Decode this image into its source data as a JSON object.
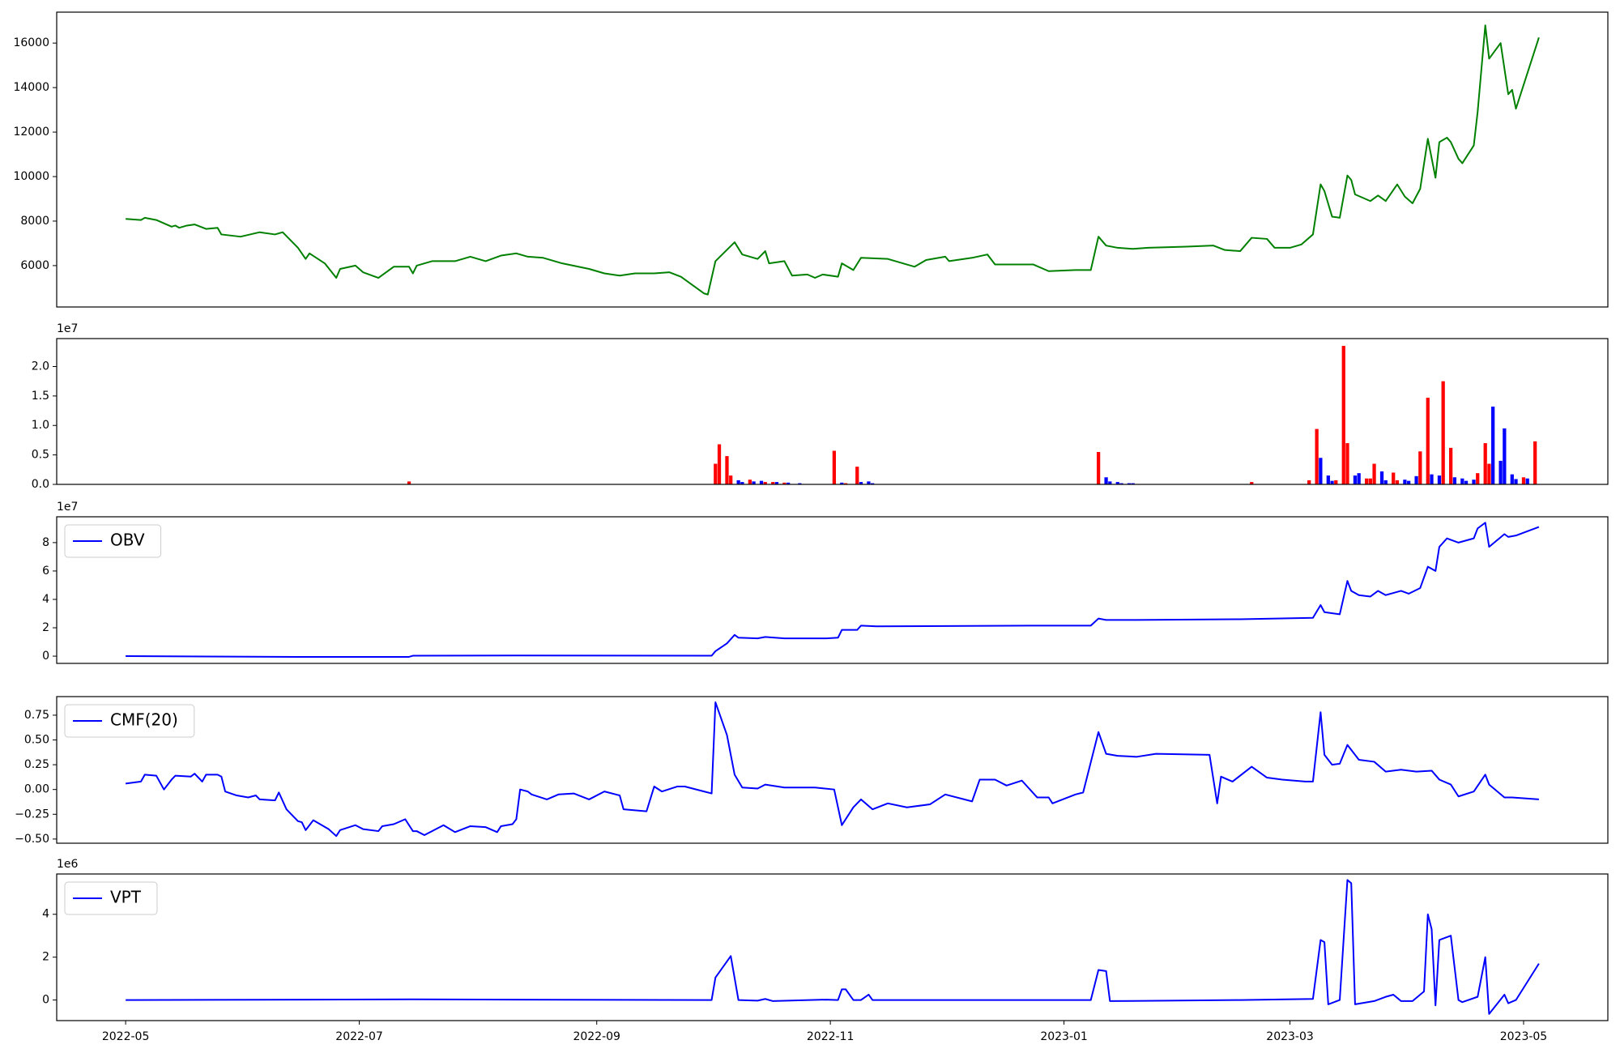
{
  "chart_data": [
    {
      "type": "line",
      "xlim": [
        19095,
        19500
      ],
      "ylim": [
        4140,
        17390
      ],
      "yticks": [
        6000,
        8000,
        10000,
        12000,
        14000,
        16000
      ],
      "color": "green",
      "x": [
        19113,
        19117,
        19118,
        19121,
        19123,
        19125,
        19126,
        19127,
        19129,
        19131,
        19134,
        19137,
        19138,
        19143,
        19148,
        19152,
        19154,
        19158,
        19160,
        19161,
        19165,
        19168,
        19169,
        19173,
        19175,
        19179,
        19183,
        19187,
        19188,
        19189,
        19193,
        19199,
        19203,
        19207,
        19211,
        19215,
        19218,
        19222,
        19227,
        19234,
        19238,
        19242,
        19246,
        19251,
        19255,
        19258,
        19264,
        19265,
        19267,
        19272,
        19274,
        19278,
        19280,
        19281,
        19285,
        19287,
        19291,
        19293,
        19295,
        19299,
        19300,
        19303,
        19305,
        19312,
        19319,
        19322,
        19327,
        19328,
        19334,
        19338,
        19340,
        19350,
        19354,
        19361,
        19365,
        19367,
        19369,
        19372,
        19376,
        19380,
        19390,
        19397,
        19400,
        19404,
        19407,
        19411,
        19413,
        19417,
        19420,
        19423,
        19425,
        19426,
        19428,
        19430,
        19432,
        19433,
        19434,
        19438,
        19440,
        19442,
        19445,
        19447,
        19449,
        19451,
        19453,
        19455,
        19456,
        19458,
        19459,
        19461,
        19462,
        19465,
        19466,
        19468,
        19469,
        19472,
        19474,
        19475,
        19476,
        19482
      ],
      "values": [
        8100,
        8050,
        8150,
        8050,
        7900,
        7750,
        7800,
        7700,
        7800,
        7850,
        7650,
        7700,
        7400,
        7300,
        7500,
        7400,
        7500,
        6800,
        6300,
        6550,
        6100,
        5450,
        5850,
        6000,
        5700,
        5450,
        5950,
        5950,
        5650,
        6000,
        6200,
        6200,
        6400,
        6200,
        6450,
        6550,
        6400,
        6350,
        6100,
        5850,
        5650,
        5550,
        5650,
        5650,
        5700,
        5500,
        4750,
        4700,
        6200,
        7050,
        6500,
        6300,
        6650,
        6100,
        6200,
        5550,
        5600,
        5450,
        5600,
        5500,
        6100,
        5800,
        6350,
        6300,
        5950,
        6250,
        6400,
        6200,
        6350,
        6500,
        6050,
        6050,
        5750,
        5800,
        5800,
        7300,
        6900,
        6800,
        6750,
        6800,
        6850,
        6900,
        6700,
        6650,
        7250,
        7200,
        6800,
        6800,
        6950,
        7400,
        9650,
        9350,
        8200,
        8150,
        10050,
        9850,
        9200,
        8900,
        9150,
        8900,
        9650,
        9100,
        8800,
        9450,
        11700,
        9950,
        11550,
        11750,
        11550,
        10800,
        10600,
        11400,
        12900,
        16800,
        15300,
        16000,
        13700,
        13900,
        13050,
        16250
      ]
    },
    {
      "type": "bar",
      "xlim": [
        19095,
        19500
      ],
      "ylim": [
        0,
        24740000
      ],
      "y_offset_label": "1e7",
      "yticks": [
        {
          "value": 0,
          "label": "0.0"
        },
        {
          "value": 5000000,
          "label": "0.5"
        },
        {
          "value": 10000000,
          "label": "1.0"
        },
        {
          "value": 15000000,
          "label": "1.5"
        },
        {
          "value": 20000000,
          "label": "2.0"
        }
      ],
      "x": [
        19187,
        19267,
        19268,
        19270,
        19271,
        19273,
        19274,
        19276,
        19277,
        19279,
        19280,
        19282,
        19283,
        19285,
        19286,
        19289,
        19298,
        19300,
        19301,
        19304,
        19305,
        19307,
        19308,
        19367,
        19369,
        19370,
        19372,
        19373,
        19375,
        19376,
        19407,
        19422,
        19424,
        19425,
        19427,
        19428,
        19429,
        19431,
        19432,
        19434,
        19435,
        19437,
        19438,
        19439,
        19441,
        19442,
        19444,
        19445,
        19447,
        19448,
        19450,
        19451,
        19453,
        19454,
        19456,
        19457,
        19459,
        19460,
        19462,
        19463,
        19465,
        19466,
        19468,
        19469,
        19470,
        19472,
        19473,
        19475,
        19476,
        19478,
        19479,
        19481
      ],
      "values": [
        500000,
        3500000,
        6800000,
        4800000,
        1500000,
        700000,
        400000,
        800000,
        500000,
        600000,
        400000,
        400000,
        400000,
        300000,
        300000,
        200000,
        5700000,
        300000,
        200000,
        3000000,
        400000,
        500000,
        200000,
        5500000,
        1200000,
        500000,
        400000,
        200000,
        200000,
        200000,
        400000,
        700000,
        9400000,
        4500000,
        1500000,
        600000,
        700000,
        23500000,
        7000000,
        1500000,
        1900000,
        1000000,
        1000000,
        3500000,
        2200000,
        700000,
        2000000,
        700000,
        800000,
        600000,
        1400000,
        5600000,
        14700000,
        1700000,
        1500000,
        17500000,
        6200000,
        1200000,
        1000000,
        600000,
        800000,
        1900000,
        7000000,
        3500000,
        13200000,
        4000000,
        9500000,
        1700000,
        900000,
        1200000,
        1000000,
        7300000
      ],
      "colors": [
        "red",
        "red",
        "red",
        "red",
        "red",
        "blue",
        "blue",
        "red",
        "blue",
        "blue",
        "red",
        "red",
        "blue",
        "red",
        "blue",
        "blue",
        "red",
        "blue",
        "red",
        "red",
        "blue",
        "blue",
        "blue",
        "red",
        "blue",
        "blue",
        "blue",
        "blue",
        "blue",
        "blue",
        "red",
        "red",
        "red",
        "blue",
        "blue",
        "blue",
        "red",
        "red",
        "red",
        "blue",
        "blue",
        "red",
        "red",
        "red",
        "blue",
        "blue",
        "red",
        "red",
        "blue",
        "blue",
        "blue",
        "red",
        "red",
        "blue",
        "blue",
        "red",
        "red",
        "blue",
        "blue",
        "blue",
        "blue",
        "red",
        "red",
        "red",
        "blue",
        "blue",
        "blue",
        "blue",
        "blue",
        "red",
        "blue",
        "red"
      ]
    },
    {
      "type": "line",
      "xlim": [
        19095,
        19500
      ],
      "ylim": [
        -5100000,
        98200000
      ],
      "y_offset_label": "1e7",
      "legend": "upper left",
      "yticks": [
        0,
        {
          "value": 20000000,
          "label": "2"
        },
        {
          "value": 40000000,
          "label": "4"
        },
        {
          "value": 60000000,
          "label": "6"
        },
        {
          "value": 80000000,
          "label": "8"
        }
      ],
      "x": [
        19113,
        19158,
        19187,
        19188,
        19215,
        19266,
        19267,
        19270,
        19272,
        19273,
        19278,
        19280,
        19285,
        19296,
        19299,
        19300,
        19304,
        19305,
        19309,
        19350,
        19365,
        19367,
        19369,
        19377,
        19404,
        19423,
        19425,
        19426,
        19430,
        19432,
        19433,
        19435,
        19438,
        19440,
        19442,
        19446,
        19448,
        19451,
        19453,
        19455,
        19456,
        19458,
        19461,
        19465,
        19466,
        19468,
        19469,
        19473,
        19474,
        19476,
        19482
      ],
      "series": [
        {
          "name": "OBV",
          "color": "blue",
          "values": [
            0,
            -500000,
            -500000,
            300000,
            500000,
            300000,
            3500000,
            9000000,
            15000000,
            13000000,
            12500000,
            13500000,
            12500000,
            12500000,
            13000000,
            18500000,
            18500000,
            21500000,
            21000000,
            21500000,
            21500000,
            26500000,
            25500000,
            25500000,
            26000000,
            27000000,
            36000000,
            31000000,
            29500000,
            53000000,
            46000000,
            43000000,
            42000000,
            46000000,
            43000000,
            46000000,
            44000000,
            48000000,
            63000000,
            60000000,
            77000000,
            83000000,
            80000000,
            83000000,
            90000000,
            94000000,
            77000000,
            86000000,
            84000000,
            85000000,
            91000000
          ]
        }
      ]
    },
    {
      "type": "line",
      "xlim": [
        19095,
        19500
      ],
      "ylim": [
        -0.542,
        0.9375
      ],
      "legend": "upper left",
      "yticks": [
        {
          "value": -0.5,
          "label": "−0.50"
        },
        {
          "value": -0.25,
          "label": "−0.25"
        },
        {
          "value": 0,
          "label": "0.00"
        },
        0.25,
        {
          "value": 0.5,
          "label": "0.50"
        },
        0.75
      ],
      "x": [
        19113,
        19117,
        19118,
        19121,
        19123,
        19125,
        19126,
        19130,
        19131,
        19133,
        19134,
        19137,
        19138,
        19139,
        19142,
        19145,
        19147,
        19148,
        19152,
        19153,
        19155,
        19158,
        19159,
        19160,
        19162,
        19166,
        19168,
        19169,
        19173,
        19175,
        19179,
        19180,
        19183,
        19186,
        19188,
        19189,
        19191,
        19196,
        19199,
        19203,
        19207,
        19210,
        19211,
        19214,
        19215,
        19216,
        19218,
        19219,
        19223,
        19226,
        19230,
        19234,
        19238,
        19242,
        19243,
        19249,
        19251,
        19253,
        19257,
        19259,
        19264,
        19266,
        19267,
        19270,
        19272,
        19274,
        19278,
        19280,
        19285,
        19293,
        19298,
        19300,
        19303,
        19305,
        19308,
        19312,
        19317,
        19323,
        19327,
        19334,
        19336,
        19340,
        19343,
        19347,
        19351,
        19354,
        19355,
        19361,
        19363,
        19367,
        19369,
        19372,
        19377,
        19382,
        19396,
        19398,
        19399,
        19402,
        19407,
        19411,
        19415,
        19421,
        19423,
        19425,
        19426,
        19428,
        19430,
        19432,
        19435,
        19439,
        19442,
        19446,
        19450,
        19454,
        19456,
        19459,
        19461,
        19465,
        19468,
        19469,
        19473,
        19475,
        19482
      ],
      "series": [
        {
          "name": "CMF(20)",
          "color": "blue",
          "values": [
            0.06,
            0.08,
            0.15,
            0.14,
            0.0,
            0.1,
            0.14,
            0.13,
            0.16,
            0.08,
            0.15,
            0.15,
            0.13,
            -0.02,
            -0.06,
            -0.08,
            -0.06,
            -0.1,
            -0.11,
            -0.03,
            -0.2,
            -0.32,
            -0.33,
            -0.41,
            -0.31,
            -0.4,
            -0.47,
            -0.41,
            -0.36,
            -0.4,
            -0.42,
            -0.37,
            -0.35,
            -0.3,
            -0.42,
            -0.42,
            -0.46,
            -0.36,
            -0.43,
            -0.37,
            -0.38,
            -0.43,
            -0.37,
            -0.35,
            -0.3,
            0.0,
            -0.02,
            -0.05,
            -0.1,
            -0.05,
            -0.04,
            -0.1,
            -0.02,
            -0.06,
            -0.2,
            -0.22,
            0.03,
            -0.02,
            0.03,
            0.03,
            -0.02,
            -0.04,
            0.88,
            0.55,
            0.15,
            0.02,
            0.01,
            0.05,
            0.02,
            0.02,
            0.0,
            -0.36,
            -0.18,
            -0.1,
            -0.2,
            -0.14,
            -0.18,
            -0.15,
            -0.05,
            -0.12,
            0.1,
            0.1,
            0.04,
            0.09,
            -0.08,
            -0.08,
            -0.14,
            -0.05,
            -0.03,
            0.58,
            0.36,
            0.34,
            0.33,
            0.36,
            0.35,
            -0.14,
            0.13,
            0.08,
            0.23,
            0.12,
            0.1,
            0.08,
            0.08,
            0.78,
            0.35,
            0.25,
            0.26,
            0.45,
            0.3,
            0.28,
            0.18,
            0.2,
            0.18,
            0.19,
            0.1,
            0.05,
            -0.07,
            -0.02,
            0.15,
            0.05,
            -0.08,
            -0.08,
            -0.1
          ]
        }
      ]
    },
    {
      "type": "line",
      "xlim": [
        19095,
        19500
      ],
      "ylim": [
        -960000,
        5880000
      ],
      "y_offset_label": "1e6",
      "legend": "upper left",
      "yticks": [
        0,
        {
          "value": 2000000,
          "label": "2"
        },
        {
          "value": 4000000,
          "label": "4"
        }
      ],
      "xticks": [
        {
          "value": 19113,
          "label": "2022-05"
        },
        {
          "value": 19174,
          "label": "2022-07"
        },
        {
          "value": 19236,
          "label": "2022-09"
        },
        {
          "value": 19297,
          "label": "2022-11"
        },
        {
          "value": 19358,
          "label": "2023-01"
        },
        {
          "value": 19417,
          "label": "2023-03"
        },
        {
          "value": 19478,
          "label": "2023-05"
        }
      ],
      "x": [
        19113,
        19188,
        19266,
        19267,
        19271,
        19273,
        19278,
        19280,
        19282,
        19296,
        19299,
        19300,
        19301,
        19303,
        19305,
        19307,
        19308,
        19365,
        19367,
        19369,
        19370,
        19404,
        19423,
        19425,
        19426,
        19427,
        19430,
        19432,
        19433,
        19434,
        19439,
        19442,
        19444,
        19446,
        19449,
        19452,
        19453,
        19454,
        19455,
        19456,
        19459,
        19461,
        19462,
        19466,
        19468,
        19469,
        19473,
        19474,
        19476,
        19482
      ],
      "series": [
        {
          "name": "VPT",
          "color": "blue",
          "values": [
            0,
            30000,
            0,
            1050000,
            2050000,
            0,
            -30000,
            50000,
            -50000,
            20000,
            0,
            500000,
            500000,
            0,
            0,
            250000,
            0,
            0,
            1400000,
            1350000,
            -50000,
            0,
            50000,
            2800000,
            2700000,
            -200000,
            0,
            5600000,
            5450000,
            -200000,
            -50000,
            150000,
            250000,
            -50000,
            -50000,
            400000,
            4000000,
            3300000,
            -250000,
            2800000,
            3000000,
            0,
            -100000,
            150000,
            2000000,
            -650000,
            250000,
            -150000,
            0,
            1700000
          ]
        }
      ]
    }
  ]
}
